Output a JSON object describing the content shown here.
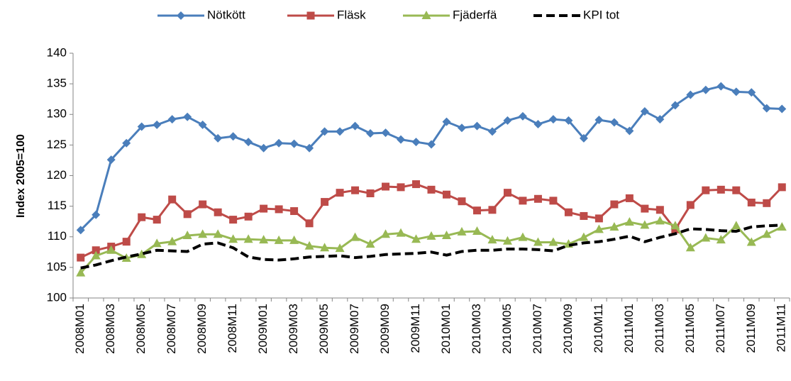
{
  "chart_data": {
    "type": "line",
    "y_label": "Index 2005=100",
    "categories": [
      "2008M01",
      null,
      "2008M03",
      null,
      "2008M05",
      null,
      "2008M07",
      null,
      "2008M09",
      null,
      "2008M11",
      null,
      "2009M01",
      null,
      "2009M03",
      null,
      "2009M05",
      null,
      "2009M07",
      null,
      "2009M09",
      null,
      "2009M11",
      null,
      "2010M01",
      null,
      "2010M03",
      null,
      "2010M05",
      null,
      "2010M07",
      null,
      "2010M09",
      null,
      "2010M11",
      null,
      "2011M01",
      null,
      "2011M03",
      null,
      "2011M05",
      null,
      "2011M07",
      null,
      "2011M09",
      null,
      "2011M11"
    ],
    "series": [
      {
        "name": "Nötkött",
        "color": "#4a7ebb",
        "marker": "diamond",
        "dash": false,
        "values": [
          111.1,
          113.6,
          122.6,
          125.3,
          128.0,
          128.3,
          129.2,
          129.6,
          128.3,
          126.1,
          126.4,
          125.5,
          124.5,
          125.3,
          125.2,
          124.5,
          127.2,
          127.2,
          128.1,
          126.9,
          127.0,
          125.9,
          125.5,
          125.1,
          128.8,
          127.8,
          128.1,
          127.2,
          129.0,
          129.7,
          128.4,
          129.2,
          129.0,
          126.1,
          129.1,
          128.7,
          127.3,
          130.5,
          129.2,
          131.5,
          133.2,
          134.0,
          134.6,
          133.7,
          133.6,
          131.0,
          130.9
        ]
      },
      {
        "name": "Fläsk",
        "color": "#be4b48",
        "marker": "square",
        "dash": false,
        "values": [
          106.6,
          107.8,
          108.4,
          109.2,
          113.2,
          112.8,
          116.1,
          113.7,
          115.3,
          114.0,
          112.8,
          113.3,
          114.6,
          114.5,
          114.2,
          112.2,
          115.7,
          117.2,
          117.6,
          117.1,
          118.2,
          118.1,
          118.6,
          117.7,
          116.9,
          115.8,
          114.3,
          114.4,
          117.2,
          115.9,
          116.2,
          115.9,
          114.0,
          113.4,
          113.0,
          115.3,
          116.3,
          114.6,
          114.4,
          111.2,
          115.2,
          117.6,
          117.7,
          117.6,
          115.6,
          115.5,
          118.1
        ]
      },
      {
        "name": "Fjäderfä",
        "color": "#98b954",
        "marker": "triangle",
        "dash": false,
        "values": [
          104.1,
          106.9,
          107.8,
          106.5,
          107.1,
          108.9,
          109.2,
          110.2,
          110.4,
          110.4,
          109.6,
          109.6,
          109.5,
          109.4,
          109.4,
          108.5,
          108.2,
          108.1,
          109.9,
          108.8,
          110.4,
          110.6,
          109.6,
          110.1,
          110.2,
          110.8,
          110.9,
          109.5,
          109.3,
          109.9,
          109.1,
          109.1,
          108.8,
          109.9,
          111.2,
          111.6,
          112.4,
          111.9,
          112.6,
          111.8,
          108.2,
          109.8,
          109.5,
          111.8,
          109.1,
          110.4,
          111.6
        ]
      },
      {
        "name": "KPI tot",
        "color": "#000000",
        "marker": "none",
        "dash": true,
        "values": [
          104.9,
          105.4,
          106.1,
          106.7,
          107.2,
          107.8,
          107.7,
          107.6,
          108.8,
          109.0,
          108.2,
          106.7,
          106.3,
          106.2,
          106.4,
          106.7,
          106.8,
          106.9,
          106.6,
          106.8,
          107.1,
          107.2,
          107.3,
          107.5,
          107.0,
          107.6,
          107.8,
          107.8,
          108.0,
          108.0,
          107.9,
          107.7,
          108.6,
          109.0,
          109.2,
          109.6,
          110.1,
          109.2,
          109.9,
          110.5,
          111.3,
          111.2,
          111.0,
          110.9,
          111.6,
          111.8,
          111.9
        ]
      }
    ],
    "ylim": [
      100,
      140
    ],
    "yticks": [
      100,
      105,
      110,
      115,
      120,
      125,
      130,
      135,
      140
    ],
    "legend": "top",
    "grid": false
  }
}
